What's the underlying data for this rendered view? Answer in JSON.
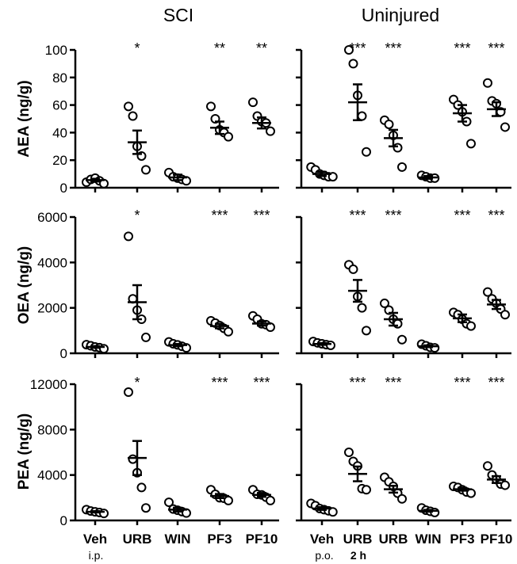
{
  "chart_data": [
    {
      "type": "scatter",
      "panel": "SCI-AEA",
      "column_title": "SCI",
      "ylabel": "AEA (ng/g)",
      "ylim": [
        0,
        100
      ],
      "yticks": [
        "0",
        "20",
        "40",
        "60",
        "80",
        "100"
      ],
      "categories": [
        "Veh",
        "URB",
        "WIN",
        "PF3",
        "PF10"
      ],
      "points": [
        [
          4,
          6,
          7,
          5,
          3
        ],
        [
          59,
          52,
          30,
          23,
          13
        ],
        [
          11,
          8,
          7,
          6,
          5
        ],
        [
          59,
          50,
          42,
          40,
          37
        ],
        [
          62,
          52,
          48,
          47,
          41
        ]
      ],
      "means": [
        5.5,
        33,
        7.5,
        43.5,
        47
      ],
      "sems": [
        1,
        8.5,
        2,
        4.5,
        4
      ],
      "stars": [
        "",
        "*",
        "",
        "**",
        "**"
      ]
    },
    {
      "type": "scatter",
      "panel": "Uninjured-AEA",
      "column_title": "Uninjured",
      "ylabel": "",
      "ylim": [
        0,
        100
      ],
      "yticks": [
        "0",
        "20",
        "40",
        "60",
        "80",
        "100"
      ],
      "categories": [
        "Veh",
        "URB",
        "URB",
        "WIN",
        "PF3",
        "PF10"
      ],
      "points": [
        [
          15,
          13,
          10,
          9,
          8,
          8
        ],
        [
          100,
          90,
          67,
          52,
          26
        ],
        [
          49,
          46,
          38,
          29,
          15
        ],
        [
          9,
          8,
          7,
          7
        ],
        [
          64,
          60,
          55,
          48,
          32
        ],
        [
          76,
          63,
          61,
          55,
          44
        ]
      ],
      "means": [
        10,
        62,
        36,
        7.5,
        54,
        57
      ],
      "sems": [
        1.5,
        13,
        6,
        1,
        6,
        5
      ],
      "stars": [
        "",
        "***",
        "***",
        "",
        "***",
        "***"
      ]
    },
    {
      "type": "scatter",
      "panel": "SCI-OEA",
      "ylabel": "OEA (ng/g)",
      "ylim": [
        0,
        6000
      ],
      "yticks": [
        "0",
        "2000",
        "4000",
        "6000"
      ],
      "categories": [
        "Veh",
        "URB",
        "WIN",
        "PF3",
        "PF10"
      ],
      "points": [
        [
          380,
          330,
          280,
          250,
          200
        ],
        [
          5150,
          2400,
          1900,
          1500,
          700
        ],
        [
          500,
          420,
          370,
          310,
          240
        ],
        [
          1430,
          1330,
          1220,
          1100,
          950
        ],
        [
          1650,
          1500,
          1300,
          1260,
          1150
        ]
      ],
      "means": [
        280,
        2250,
        360,
        1200,
        1310
      ],
      "sems": [
        40,
        750,
        50,
        100,
        90
      ],
      "stars": [
        "",
        "*",
        "",
        "***",
        "***"
      ]
    },
    {
      "type": "scatter",
      "panel": "Uninjured-OEA",
      "ylabel": "",
      "ylim": [
        0,
        6000
      ],
      "yticks": [
        "0",
        "2000",
        "4000",
        "6000"
      ],
      "categories": [
        "Veh",
        "URB",
        "URB",
        "WIN",
        "PF3",
        "PF10"
      ],
      "points": [
        [
          520,
          460,
          420,
          380,
          350
        ],
        [
          3900,
          3700,
          2500,
          2000,
          1000
        ],
        [
          2200,
          1900,
          1500,
          1300,
          600
        ],
        [
          400,
          330,
          260,
          240
        ],
        [
          1800,
          1700,
          1500,
          1300,
          1200
        ],
        [
          2700,
          2400,
          2200,
          1950,
          1700
        ]
      ],
      "means": [
        410,
        2750,
        1500,
        310,
        1540,
        2150
      ],
      "sems": [
        40,
        480,
        280,
        40,
        170,
        200
      ],
      "stars": [
        "",
        "***",
        "***",
        "",
        "***",
        "***"
      ]
    },
    {
      "type": "scatter",
      "panel": "SCI-PEA",
      "ylabel": "PEA (ng/g)",
      "ylim": [
        0,
        12000
      ],
      "yticks": [
        "0",
        "4000",
        "8000",
        "12000"
      ],
      "categories": [
        "Veh",
        "URB",
        "WIN",
        "PF3",
        "PF10"
      ],
      "points": [
        [
          950,
          830,
          760,
          700,
          620
        ],
        [
          11300,
          5400,
          4200,
          2900,
          1100
        ],
        [
          1600,
          1000,
          900,
          780,
          650
        ],
        [
          2700,
          2300,
          2000,
          1950,
          1750
        ],
        [
          2700,
          2300,
          2250,
          2050,
          1750
        ]
      ],
      "means": [
        760,
        5500,
        950,
        2150,
        2250
      ],
      "sems": [
        60,
        1500,
        170,
        180,
        170
      ],
      "stars": [
        "",
        "*",
        "",
        "***",
        "***"
      ]
    },
    {
      "type": "scatter",
      "panel": "Uninjured-PEA",
      "ylabel": "",
      "ylim": [
        0,
        12000
      ],
      "yticks": [
        "0",
        "4000",
        "8000",
        "12000"
      ],
      "categories": [
        "Veh",
        "URB",
        "URB",
        "WIN",
        "PF3",
        "PF10"
      ],
      "points": [
        [
          1500,
          1300,
          1050,
          950,
          850,
          750
        ],
        [
          6000,
          5200,
          4800,
          2800,
          2700
        ],
        [
          3800,
          3400,
          3000,
          2400,
          1900
        ],
        [
          1100,
          900,
          800,
          700
        ],
        [
          3000,
          2900,
          2700,
          2500,
          2400
        ],
        [
          4800,
          4000,
          3600,
          3200,
          3100
        ]
      ],
      "means": [
        1050,
        4100,
        2750,
        850,
        2750,
        3600
      ],
      "sems": [
        120,
        650,
        300,
        80,
        130,
        300
      ],
      "stars": [
        "",
        "***",
        "***",
        "",
        "***",
        "***"
      ]
    }
  ],
  "column_titles": {
    "left": "SCI",
    "right": "Uninjured"
  },
  "row_labels": [
    "AEA (ng/g)",
    "OEA (ng/g)",
    "PEA (ng/g)"
  ],
  "x_labels": {
    "left": [
      "Veh",
      "URB",
      "WIN",
      "PF3",
      "PF10"
    ],
    "right": [
      "Veh",
      "URB",
      "URB",
      "WIN",
      "PF3",
      "PF10"
    ]
  },
  "route_notes": {
    "left": "i.p.",
    "right": "p.o.",
    "right_time": "2 h"
  }
}
